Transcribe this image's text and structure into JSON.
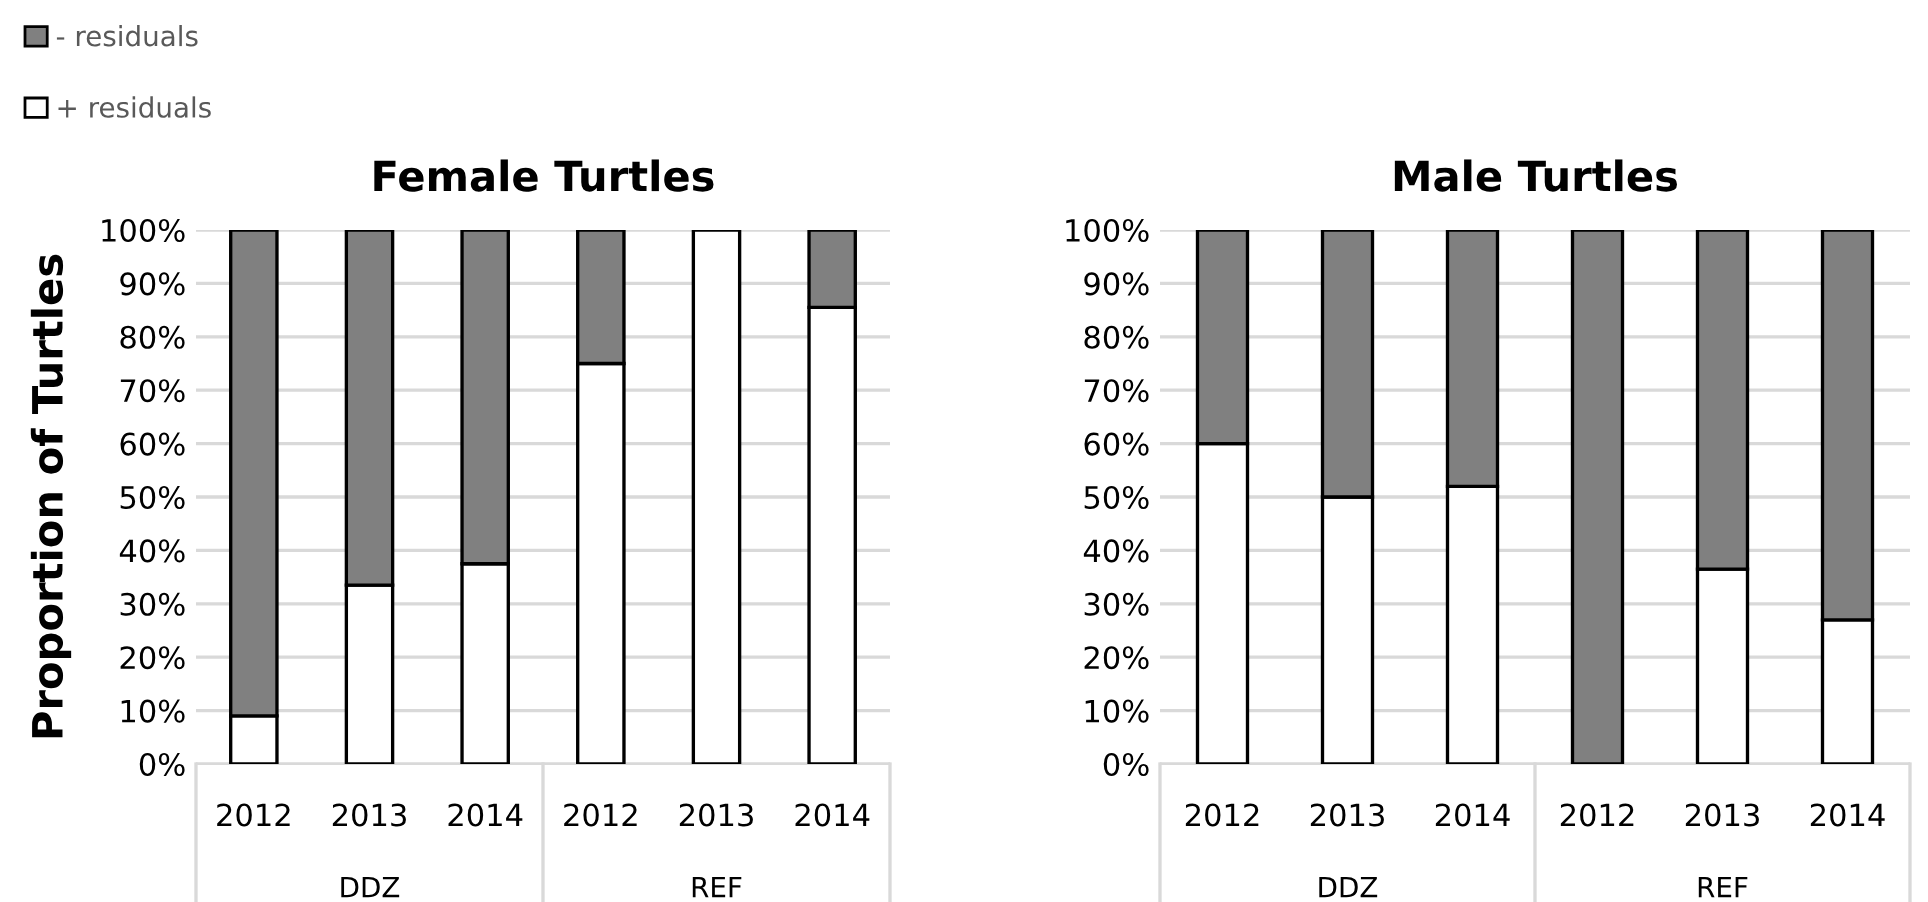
{
  "chart_data": [
    {
      "type": "bar",
      "title": "Female Turtles",
      "ylabel": "Proportion of Turtles",
      "stacked": true,
      "legend": "top left",
      "grid": "y",
      "categories": [
        "2012",
        "2013",
        "2014",
        "2012",
        "2013",
        "2014"
      ],
      "annotations": [
        "DDZ",
        "REF"
      ],
      "ylim": [
        0,
        100
      ],
      "yticks": [
        {
          "value": 0,
          "label": "0%"
        },
        {
          "value": 10,
          "label": "10%"
        },
        {
          "value": 20,
          "label": "20%"
        },
        {
          "value": 30,
          "label": "30%"
        },
        {
          "value": 40,
          "label": "40%"
        },
        {
          "value": 50,
          "label": "50%"
        },
        {
          "value": 60,
          "label": "60%"
        },
        {
          "value": 70,
          "label": "70%"
        },
        {
          "value": 80,
          "label": "80%"
        },
        {
          "value": 90,
          "label": "90%"
        },
        {
          "value": 100,
          "label": "100%"
        }
      ],
      "series": [
        {
          "name": "+ residuals",
          "color": "#ffffff",
          "values": [
            9,
            33.5,
            37.5,
            75,
            100,
            85.5
          ]
        },
        {
          "name": "- residuals",
          "color": "#808080",
          "values": [
            91,
            66.5,
            62.5,
            25,
            0,
            14.5
          ]
        }
      ]
    },
    {
      "type": "bar",
      "title": "Male Turtles",
      "stacked": true,
      "grid": "y",
      "categories": [
        "2012",
        "2013",
        "2014",
        "2012",
        "2013",
        "2014"
      ],
      "annotations": [
        "DDZ",
        "REF"
      ],
      "ylim": [
        0,
        100
      ],
      "yticks": [
        {
          "value": 0,
          "label": "0%"
        },
        {
          "value": 10,
          "label": "10%"
        },
        {
          "value": 20,
          "label": "20%"
        },
        {
          "value": 30,
          "label": "30%"
        },
        {
          "value": 40,
          "label": "40%"
        },
        {
          "value": 50,
          "label": "50%"
        },
        {
          "value": 60,
          "label": "60%"
        },
        {
          "value": 70,
          "label": "70%"
        },
        {
          "value": 80,
          "label": "80%"
        },
        {
          "value": 90,
          "label": "90%"
        },
        {
          "value": 100,
          "label": "100%"
        }
      ],
      "series": [
        {
          "color": "#ffffff",
          "values": [
            60,
            50,
            52,
            0,
            36.5,
            27
          ]
        },
        {
          "color": "#808080",
          "values": [
            40,
            50,
            48,
            100,
            63.5,
            73
          ]
        }
      ]
    }
  ]
}
